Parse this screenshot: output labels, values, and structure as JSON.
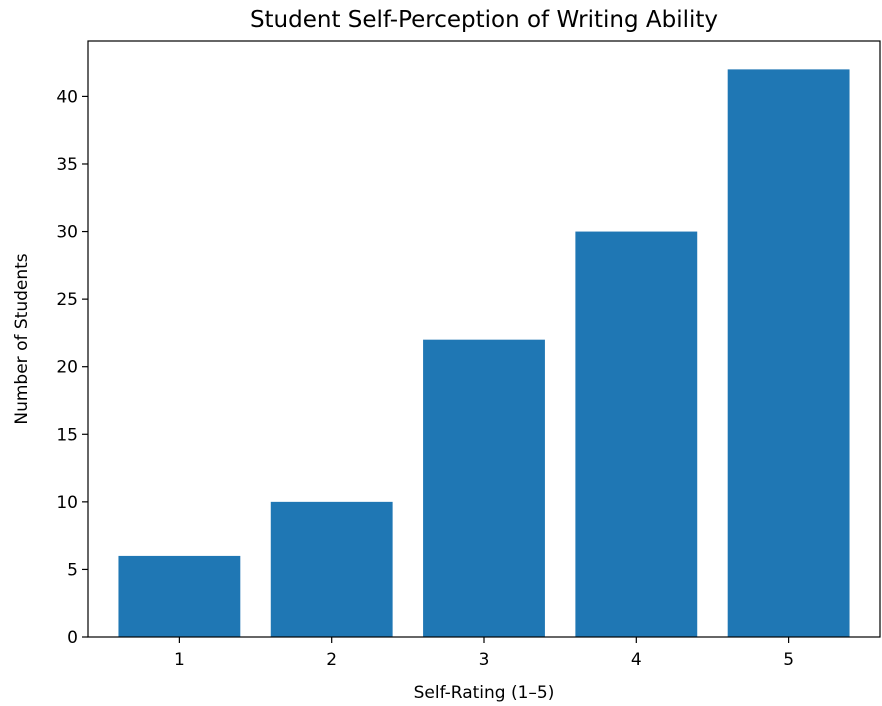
{
  "chart_data": {
    "type": "bar",
    "title": "Student Self-Perception of Writing Ability",
    "xlabel": "Self-Rating (1–5)",
    "ylabel": "Number of Students",
    "categories": [
      "1",
      "2",
      "3",
      "4",
      "5"
    ],
    "values": [
      6,
      10,
      22,
      30,
      42
    ],
    "ylim": [
      0,
      44.1
    ],
    "yticks": [
      0,
      5,
      10,
      15,
      20,
      25,
      30,
      35,
      40
    ],
    "grid": false,
    "bar_color": "#1f77b4"
  }
}
